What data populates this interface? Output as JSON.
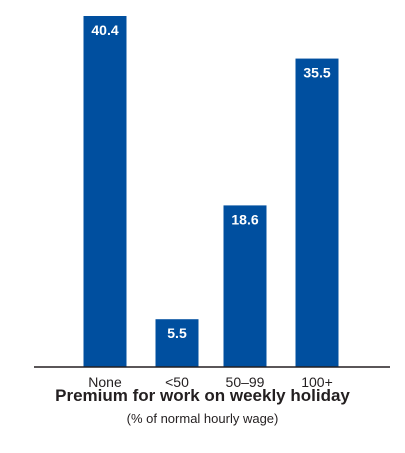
{
  "chart_data": {
    "type": "bar",
    "categories": [
      "None",
      "<50",
      "50–99",
      "100+"
    ],
    "values": [
      40.4,
      5.5,
      18.6,
      35.5
    ],
    "value_labels": [
      "40.4",
      "5.5",
      "18.6",
      "35.5"
    ],
    "xlabel": "Premium for work on weekly holiday",
    "xlabel_sub": "(% of normal hourly wage)",
    "ylim": [
      0,
      40.4
    ],
    "grid": false,
    "bar_color": "#004f9f",
    "axis_color": "#231f20"
  }
}
